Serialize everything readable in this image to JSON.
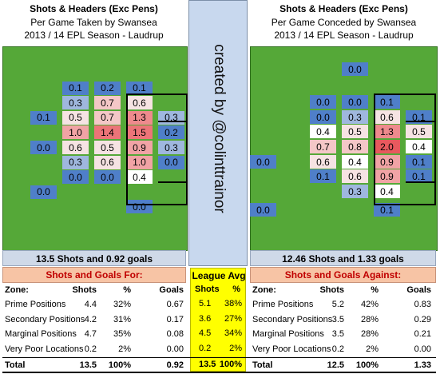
{
  "left_title": [
    "Shots & Headers (Exc Pens)",
    "Per Game Taken by Swansea",
    "2013 / 14 EPL Season - Laudrup"
  ],
  "right_title": [
    "Shots & Headers (Exc Pens)",
    "Per Game Conceded by Swansea",
    "2013 / 14 EPL Season - Laudrup"
  ],
  "credit": "created by @colinttrainor",
  "left_summary": "13.5 Shots and 0.92 goals",
  "right_summary": "12.46 Shots and 1.33 goals",
  "left_table_title": "Shots and Goals For:",
  "right_table_title": "Shots and Goals Against:",
  "league_title": "League Avg",
  "col_headers": {
    "zone": "Zone:",
    "shots": "Shots",
    "pct": "%",
    "goals": "Goals"
  },
  "row_labels": [
    "Prime Positions",
    "Secondary Positions",
    "Marginal Positions",
    "Very Poor Locations",
    "Total"
  ],
  "colors": {
    "pitch": "#55a838",
    "header_bg": "#f7c4a5",
    "header_text": "#c00000",
    "summary_bg": "#cfd9e8",
    "league_bg": "#ffff00"
  },
  "chart_data": [
    {
      "type": "heatmap",
      "title": "Shots & Headers (Exc Pens) Per Game Taken by Swansea",
      "rows": [
        [
          "",
          "",
          "",
          "",
          "",
          ""
        ],
        [
          "",
          "0.1",
          "0.2",
          "0.1",
          "",
          ""
        ],
        [
          "",
          "0.3",
          "0.7",
          "0.6",
          "",
          ""
        ],
        [
          "0.1",
          "0.5",
          "0.7",
          "1.3",
          "0.3",
          ""
        ],
        [
          "",
          "1.0",
          "1.4",
          "1.5",
          "0.2",
          ""
        ],
        [
          "0.0",
          "0.6",
          "0.5",
          "0.9",
          "0.3",
          ""
        ],
        [
          "",
          "0.3",
          "0.6",
          "1.0",
          "0.0",
          ""
        ],
        [
          "",
          "0.0",
          "0.0",
          "0.4",
          "",
          ""
        ],
        [
          "0.0",
          "",
          "",
          "",
          "",
          ""
        ],
        [
          "",
          "",
          "",
          "0.0",
          "",
          ""
        ]
      ]
    },
    {
      "type": "heatmap",
      "title": "Shots & Headers (Exc Pens) Per Game Conceded by Swansea",
      "rows": [
        [
          "",
          "",
          "0.0",
          "",
          "",
          ""
        ],
        [
          "",
          "0.0",
          "0.0",
          "0.1",
          "",
          ""
        ],
        [
          "",
          "0.0",
          "0.3",
          "0.6",
          "0.1",
          ""
        ],
        [
          "",
          "0.4",
          "0.5",
          "1.3",
          "0.5",
          ""
        ],
        [
          "",
          "0.7",
          "0.8",
          "2.0",
          "0.4",
          ""
        ],
        [
          "0.0",
          "0.6",
          "0.4",
          "0.9",
          "0.1",
          ""
        ],
        [
          "",
          "0.1",
          "0.6",
          "0.9",
          "0.1",
          ""
        ],
        [
          "",
          "",
          "0.3",
          "0.4",
          "",
          ""
        ],
        [
          "0.0",
          "",
          "",
          "0.1",
          "",
          ""
        ]
      ]
    },
    {
      "type": "table",
      "title": "Shots and Goals For:",
      "rows": [
        {
          "zone": "Prime Positions",
          "shots": "4.4",
          "pct": "32%",
          "goals": "0.67"
        },
        {
          "zone": "Secondary Positions",
          "shots": "4.2",
          "pct": "31%",
          "goals": "0.17"
        },
        {
          "zone": "Marginal Positions",
          "shots": "4.7",
          "pct": "35%",
          "goals": "0.08"
        },
        {
          "zone": "Very Poor Locations",
          "shots": "0.2",
          "pct": "2%",
          "goals": "0.00"
        },
        {
          "zone": "Total",
          "shots": "13.5",
          "pct": "100%",
          "goals": "0.92"
        }
      ]
    },
    {
      "type": "table",
      "title": "League Avg",
      "rows": [
        {
          "shots": "5.1",
          "pct": "38%"
        },
        {
          "shots": "3.6",
          "pct": "27%"
        },
        {
          "shots": "4.5",
          "pct": "34%"
        },
        {
          "shots": "0.2",
          "pct": "2%"
        },
        {
          "shots": "13.5",
          "pct": "100%"
        }
      ]
    },
    {
      "type": "table",
      "title": "Shots and Goals Against:",
      "rows": [
        {
          "zone": "Prime Positions",
          "shots": "5.2",
          "pct": "42%",
          "goals": "0.83"
        },
        {
          "zone": "Secondary Positions",
          "shots": "3.5",
          "pct": "28%",
          "goals": "0.29"
        },
        {
          "zone": "Marginal Positions",
          "shots": "3.5",
          "pct": "28%",
          "goals": "0.21"
        },
        {
          "zone": "Very Poor Locations",
          "shots": "0.2",
          "pct": "2%",
          "goals": "0.00"
        },
        {
          "zone": "Total",
          "shots": "12.5",
          "pct": "100%",
          "goals": "1.33"
        }
      ]
    }
  ]
}
